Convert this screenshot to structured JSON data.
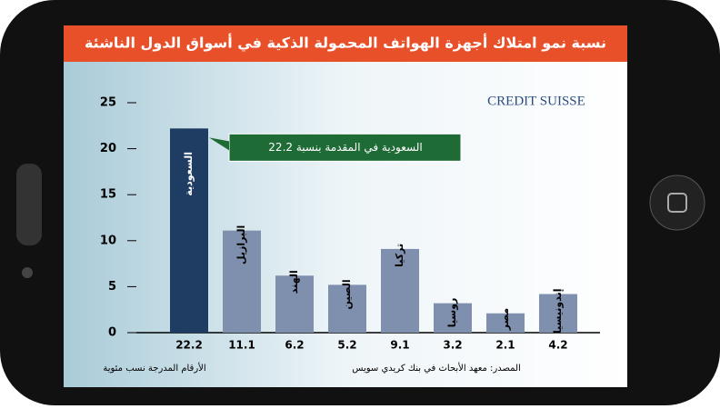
{
  "chart_data": {
    "type": "bar",
    "title": "نسبة نمو امتلاك أجهزة الهواتف المحمولة الذكية في أسواق الدول الناشئة",
    "brand": "CREDIT SUISSE",
    "annotation": "السعودية في المقدمة بنسبة 22.2",
    "source": "المصدر: معهد الأبحاث في بنك كريدي سويس",
    "note": "الأرقام المدرجة نسب مئوية",
    "categories": [
      "السعودية",
      "البرازيل",
      "الهند",
      "الصين",
      "تركيا",
      "روسيا",
      "مصر",
      "إندونيسيا"
    ],
    "values": [
      22.2,
      11.1,
      6.2,
      5.2,
      9.1,
      3.2,
      2.1,
      4.2
    ],
    "value_labels": [
      "22.2",
      "11.1",
      "6.2",
      "5.2",
      "9.1",
      "3.2",
      "2.1",
      "4.2"
    ],
    "colors": [
      "#1f3d63",
      "#7f8fae",
      "#7f8fae",
      "#7f8fae",
      "#7f8fae",
      "#7f8fae",
      "#7f8fae",
      "#7f8fae"
    ],
    "ylim": [
      0,
      25
    ],
    "yticks": [
      0,
      5,
      10,
      15,
      20,
      25
    ]
  }
}
